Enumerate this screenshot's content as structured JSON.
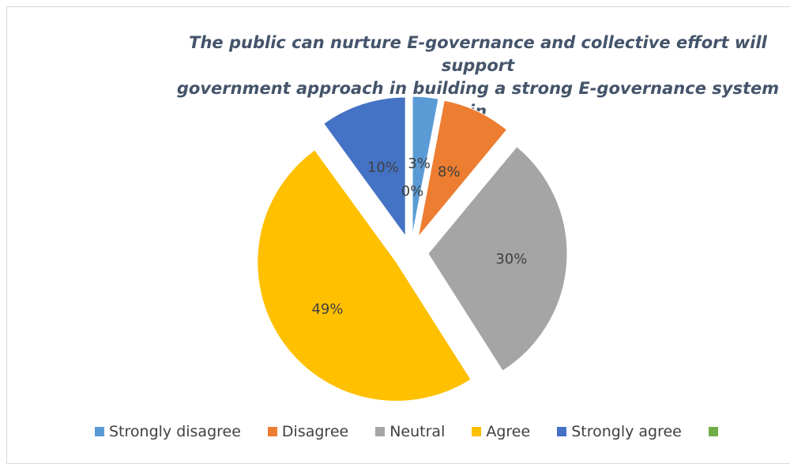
{
  "chart_data": {
    "type": "pie",
    "title": "The public can nurture E-governance and collective effort will support\ngovernment approach in building a strong E-governance system in\nIraq",
    "categories": [
      "Strongly disagree",
      "Disagree",
      "Neutral",
      "Agree",
      "Strongly agree",
      ""
    ],
    "values": [
      3,
      8,
      30,
      49,
      10,
      0
    ],
    "data_labels": [
      "3%",
      "8%",
      "30%",
      "49%",
      "10%",
      "0%"
    ],
    "colors": [
      "#5b9bd5",
      "#ed7d31",
      "#a5a5a5",
      "#ffc000",
      "#4472c4",
      "#70ad47"
    ],
    "exploded": true,
    "legend_position": "bottom"
  }
}
